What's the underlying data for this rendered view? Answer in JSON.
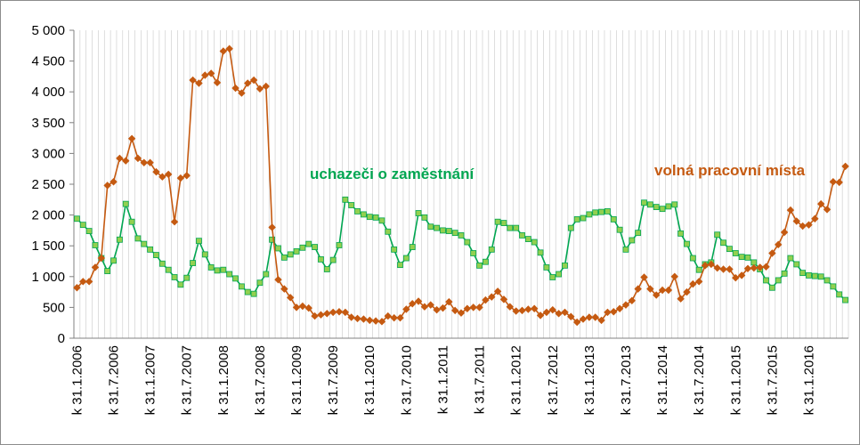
{
  "chart_data": {
    "type": "line",
    "title": "",
    "xlabel": "",
    "ylabel": "",
    "ylim": [
      0,
      5000
    ],
    "y_ticks": [
      0,
      500,
      1000,
      1500,
      2000,
      2500,
      3000,
      3500,
      4000,
      4500,
      5000
    ],
    "y_tick_labels": [
      "0",
      "500",
      "1 000",
      "1 500",
      "2 000",
      "2 500",
      "3 000",
      "3 500",
      "4 000",
      "4 500",
      "5 000"
    ],
    "grid": "vertical",
    "x_tick_labels": [
      {
        "index": 0,
        "label": "k 31.1.2006"
      },
      {
        "index": 6,
        "label": "k 31.7.2006"
      },
      {
        "index": 12,
        "label": "k 31.1.2007"
      },
      {
        "index": 18,
        "label": "k 31.7.2007"
      },
      {
        "index": 24,
        "label": "k 31.1.2008"
      },
      {
        "index": 30,
        "label": "k 31.7.2008"
      },
      {
        "index": 36,
        "label": "k 31.1.2009"
      },
      {
        "index": 42,
        "label": "k 31.7.2009"
      },
      {
        "index": 48,
        "label": "k 31.1.2010"
      },
      {
        "index": 54,
        "label": "k 31.7.2010"
      },
      {
        "index": 60,
        "label": "k 31.1.2011"
      },
      {
        "index": 66,
        "label": "k 31.7.2011"
      },
      {
        "index": 72,
        "label": "k 31.1.2012"
      },
      {
        "index": 78,
        "label": "k 31.7.2012"
      },
      {
        "index": 84,
        "label": "k 31.1.2013"
      },
      {
        "index": 90,
        "label": "k 31.7.2013"
      },
      {
        "index": 96,
        "label": "k 31.1.2014"
      },
      {
        "index": 102,
        "label": "k 31.7.2014"
      },
      {
        "index": 108,
        "label": "k 31.1.2015"
      },
      {
        "index": 114,
        "label": "k 31.7.2015"
      },
      {
        "index": 120,
        "label": "k 31.1.2016"
      }
    ],
    "series": [
      {
        "name": "uchazeči o zaměstnání",
        "color": "#00A651",
        "fill": "#92D050",
        "marker": "square",
        "values": [
          1940,
          1840,
          1740,
          1510,
          1300,
          1090,
          1260,
          1600,
          2180,
          1890,
          1620,
          1530,
          1440,
          1350,
          1210,
          1110,
          990,
          870,
          980,
          1220,
          1580,
          1360,
          1150,
          1100,
          1110,
          1040,
          970,
          840,
          750,
          720,
          900,
          1040,
          1600,
          1460,
          1310,
          1360,
          1410,
          1470,
          1530,
          1480,
          1280,
          1120,
          1270,
          1510,
          2250,
          2160,
          2060,
          2010,
          1970,
          1960,
          1910,
          1730,
          1440,
          1190,
          1300,
          1480,
          2030,
          1960,
          1810,
          1790,
          1750,
          1740,
          1710,
          1670,
          1560,
          1380,
          1180,
          1240,
          1440,
          1890,
          1870,
          1790,
          1790,
          1670,
          1610,
          1560,
          1390,
          1150,
          990,
          1040,
          1180,
          1790,
          1930,
          1950,
          2010,
          2040,
          2050,
          2060,
          1930,
          1760,
          1440,
          1590,
          1710,
          2200,
          2170,
          2130,
          2100,
          2140,
          2170,
          1700,
          1530,
          1300,
          1110,
          1200,
          1230,
          1680,
          1550,
          1450,
          1380,
          1320,
          1310,
          1230,
          1120,
          940,
          820,
          940,
          1050,
          1300,
          1200,
          1060,
          1020,
          1010,
          1000,
          940,
          840,
          710,
          620
        ]
      },
      {
        "name": "volná pracovní místa",
        "color": "#C55A11",
        "fill": "#C55A11",
        "marker": "diamond",
        "values": [
          820,
          920,
          920,
          1150,
          1300,
          2480,
          2540,
          2920,
          2880,
          3240,
          2920,
          2850,
          2850,
          2700,
          2620,
          2660,
          1890,
          2600,
          2640,
          4190,
          4140,
          4270,
          4300,
          4150,
          4660,
          4700,
          4060,
          3980,
          4140,
          4190,
          4050,
          4090,
          1800,
          950,
          800,
          660,
          500,
          520,
          490,
          360,
          380,
          400,
          420,
          430,
          420,
          340,
          320,
          310,
          290,
          280,
          270,
          360,
          330,
          330,
          470,
          560,
          600,
          510,
          540,
          460,
          490,
          590,
          450,
          410,
          480,
          500,
          500,
          620,
          670,
          760,
          630,
          510,
          440,
          450,
          470,
          480,
          370,
          420,
          460,
          400,
          420,
          350,
          260,
          310,
          340,
          340,
          290,
          420,
          430,
          480,
          540,
          610,
          800,
          990,
          800,
          700,
          780,
          780,
          1000,
          640,
          750,
          880,
          920,
          1180,
          1200,
          1140,
          1120,
          1120,
          980,
          1020,
          1130,
          1140,
          1150,
          1160,
          1380,
          1520,
          1720,
          2080,
          1900,
          1820,
          1840,
          1940,
          2180,
          2090,
          2540,
          2530,
          2790
        ]
      }
    ],
    "annotations": [
      {
        "text": "uchazeči o zaměstnání",
        "color": "#00A651"
      },
      {
        "text": "volná pracovní místa",
        "color": "#C55A11"
      }
    ]
  }
}
